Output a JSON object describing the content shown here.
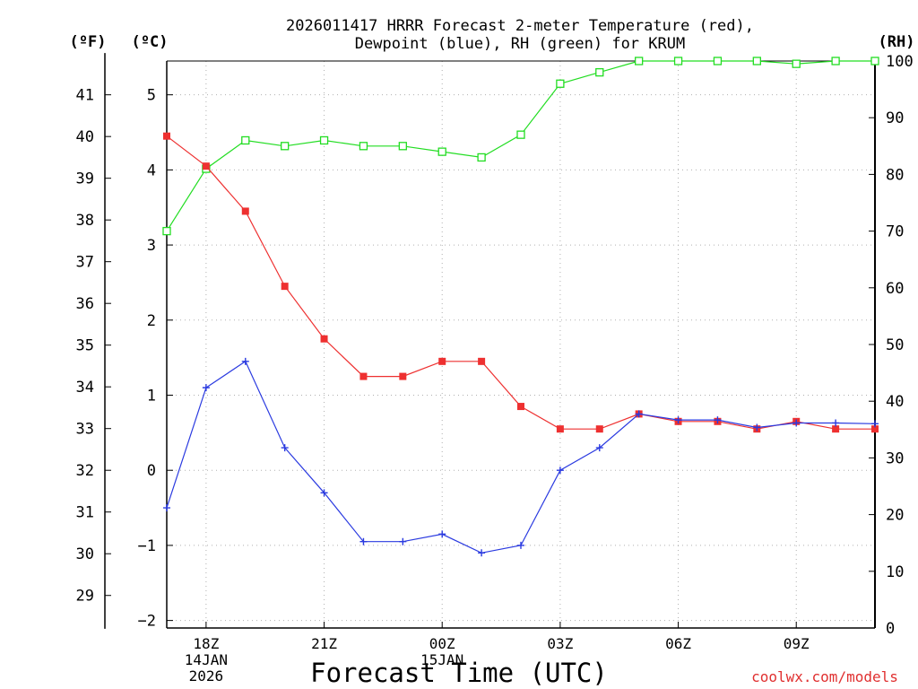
{
  "chart_data": {
    "type": "line",
    "title": "2026011417 HRRR Forecast 2-meter Temperature (red),",
    "subtitle": "Dewpoint (blue), RH (green) for KRUM",
    "xlabel": "Forecast Time (UTC)",
    "unit_labels": {
      "fahrenheit": "(ºF)",
      "celsius": "(ºC)",
      "rh": "(RH)"
    },
    "credit": "coolwx.com/models",
    "x_hours": [
      17,
      18,
      19,
      20,
      21,
      22,
      23,
      24,
      25,
      26,
      27,
      28,
      29,
      30,
      31,
      32,
      33,
      34,
      35
    ],
    "x_ticks": [
      {
        "hour": 18,
        "label": "18Z",
        "date": "14JAN",
        "year": "2026"
      },
      {
        "hour": 21,
        "label": "21Z"
      },
      {
        "hour": 24,
        "label": "00Z",
        "date": "15JAN"
      },
      {
        "hour": 27,
        "label": "03Z"
      },
      {
        "hour": 30,
        "label": "06Z"
      },
      {
        "hour": 33,
        "label": "09Z"
      }
    ],
    "xlim": [
      17,
      35
    ],
    "ylim_c": [
      -2.1,
      5.45
    ],
    "ylim_rh": [
      0,
      100
    ],
    "celsius_ticks": [
      "5",
      "4",
      "3",
      "2",
      "1",
      "0",
      "−1",
      "−2"
    ],
    "fahrenheit_ticks": [
      "41",
      "40",
      "39",
      "38",
      "37",
      "36",
      "35",
      "34",
      "33",
      "32",
      "31",
      "30",
      "29"
    ],
    "rh_ticks": [
      "100",
      "90",
      "80",
      "70",
      "60",
      "50",
      "40",
      "30",
      "20",
      "10",
      "0"
    ],
    "grid": true,
    "series": [
      {
        "name": "Temperature",
        "color": "#ee3030",
        "marker": "filled-square",
        "axis": "celsius",
        "values": [
          4.45,
          4.05,
          3.45,
          2.45,
          1.75,
          1.25,
          1.25,
          1.45,
          1.45,
          0.85,
          0.55,
          0.55,
          0.75,
          0.65,
          0.65,
          0.55,
          0.65,
          0.55,
          0.55
        ]
      },
      {
        "name": "Dewpoint",
        "color": "#2a3ae0",
        "marker": "plus",
        "axis": "celsius",
        "values": [
          -0.5,
          1.1,
          1.45,
          0.3,
          -0.3,
          -0.95,
          -0.95,
          -0.85,
          -1.1,
          -1.0,
          0.0,
          0.3,
          0.75,
          0.67,
          0.67,
          0.57,
          0.63,
          0.63,
          0.62
        ]
      },
      {
        "name": "RH",
        "color": "#22dd22",
        "marker": "open-square",
        "axis": "rh",
        "values": [
          70,
          81,
          86,
          85,
          86,
          85,
          85,
          84,
          83,
          87,
          96,
          98,
          100,
          100,
          100,
          100,
          99.5,
          100,
          100
        ]
      }
    ]
  }
}
